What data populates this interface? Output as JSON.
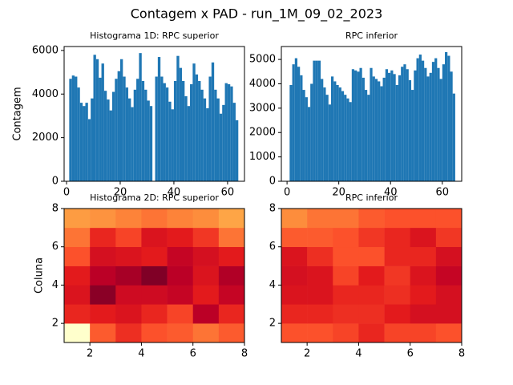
{
  "title": "Contagem x PAD - run_1M_09_02_2023",
  "chart_data": [
    {
      "type": "histogram",
      "title": "Histograma 1D: RPC superior",
      "ylabel": "Contagem",
      "color": "#1f77b4",
      "bins": [
        1,
        2,
        3,
        4,
        5,
        6,
        7,
        8,
        9,
        10,
        11,
        12,
        13,
        14,
        15,
        16,
        17,
        18,
        19,
        20,
        21,
        22,
        23,
        24,
        25,
        26,
        27,
        28,
        29,
        30,
        31,
        32,
        33,
        34,
        35,
        36,
        37,
        38,
        39,
        40,
        41,
        42,
        43,
        44,
        45,
        46,
        47,
        48,
        49,
        50,
        51,
        52,
        53,
        54,
        55,
        56,
        57,
        58,
        59,
        60,
        61,
        62,
        63,
        64
      ],
      "values": [
        4700,
        4850,
        4800,
        4300,
        3600,
        3450,
        3600,
        2850,
        3800,
        5800,
        5600,
        4750,
        5400,
        4150,
        3750,
        3250,
        4100,
        4700,
        5050,
        5600,
        4800,
        4300,
        3800,
        3400,
        4200,
        4700,
        5880,
        4600,
        4200,
        3700,
        3450,
        0,
        4800,
        5700,
        4800,
        4500,
        4300,
        3650,
        3300,
        4600,
        5750,
        5200,
        4600,
        3900,
        3450,
        4450,
        5400,
        4900,
        4600,
        4200,
        3800,
        3350,
        4800,
        5450,
        4200,
        3800,
        3100,
        3500,
        4500,
        4450,
        4350,
        3600,
        2800
      ],
      "xlim": [
        -0.9,
        66.3
      ],
      "ylim": [
        0,
        6180
      ],
      "xticks": [
        0,
        20,
        40,
        60
      ],
      "yticks": [
        0,
        2000,
        4000,
        6000
      ]
    },
    {
      "type": "histogram",
      "title": "RPC inferior",
      "color": "#1f77b4",
      "bins": [
        1,
        2,
        3,
        4,
        5,
        6,
        7,
        8,
        9,
        10,
        11,
        12,
        13,
        14,
        15,
        16,
        17,
        18,
        19,
        20,
        21,
        22,
        23,
        24,
        25,
        26,
        27,
        28,
        29,
        30,
        31,
        32,
        33,
        34,
        35,
        36,
        37,
        38,
        39,
        40,
        41,
        42,
        43,
        44,
        45,
        46,
        47,
        48,
        49,
        50,
        51,
        52,
        53,
        54,
        55,
        56,
        57,
        58,
        59,
        60,
        61,
        62,
        63,
        64,
        65
      ],
      "values": [
        3950,
        4800,
        5050,
        4700,
        4350,
        3750,
        3450,
        3050,
        4000,
        4950,
        4950,
        4950,
        4200,
        3850,
        3550,
        3150,
        4300,
        4100,
        3950,
        3850,
        3700,
        3550,
        3400,
        3250,
        4600,
        4550,
        4500,
        4650,
        4250,
        3750,
        3550,
        4650,
        4300,
        4200,
        4100,
        3900,
        4250,
        4600,
        4450,
        4550,
        4400,
        3950,
        4350,
        4700,
        4800,
        4600,
        4150,
        3750,
        4550,
        5050,
        5200,
        4950,
        4650,
        4300,
        4450,
        4900,
        5050,
        4650,
        4200,
        4800,
        5300,
        5150,
        4500,
        3600
      ],
      "xlim": [
        -2.2,
        67.5
      ],
      "ylim": [
        0,
        5530
      ],
      "xticks": [
        0,
        20,
        40,
        60
      ],
      "yticks": [
        0,
        1000,
        2000,
        3000,
        4000,
        5000
      ]
    },
    {
      "type": "heatmap",
      "title": "Histograma 2D: RPC superior",
      "ylabel": "Coluna",
      "xedges": [
        1,
        2,
        3,
        4,
        5,
        6,
        7,
        8
      ],
      "yedges": [
        1,
        2,
        3,
        4,
        5,
        6,
        7,
        8
      ],
      "values": [
        [
          0,
          60,
          70,
          62,
          60,
          55,
          60
        ],
        [
          72,
          75,
          78,
          72,
          65,
          88,
          72
        ],
        [
          78,
          98,
          82,
          82,
          85,
          75,
          85
        ],
        [
          75,
          88,
          92,
          100,
          88,
          78,
          90
        ],
        [
          62,
          80,
          78,
          75,
          85,
          80,
          75
        ],
        [
          55,
          72,
          65,
          78,
          75,
          68,
          55
        ],
        [
          45,
          48,
          52,
          55,
          52,
          50,
          42
        ]
      ],
      "clim": [
        0,
        100
      ],
      "colormap": [
        "#ffffcc",
        "#ffeda0",
        "#fed976",
        "#feb24c",
        "#fd8d3c",
        "#fc4e2a",
        "#e31a1c",
        "#bd0026",
        "#800026"
      ],
      "xlim": [
        1,
        8
      ],
      "ylim": [
        1,
        8
      ],
      "xticks": [
        2,
        4,
        6,
        8
      ],
      "yticks": [
        2,
        4,
        6,
        8
      ]
    },
    {
      "type": "heatmap",
      "title": "RPC inferior",
      "xedges": [
        1,
        2,
        3,
        4,
        5,
        6,
        7,
        8
      ],
      "yedges": [
        1,
        2,
        3,
        4,
        5,
        6,
        7,
        8
      ],
      "values": [
        [
          62,
          62,
          65,
          72,
          65,
          65,
          62
        ],
        [
          72,
          72,
          70,
          70,
          75,
          80,
          80
        ],
        [
          78,
          78,
          72,
          72,
          70,
          75,
          80
        ],
        [
          80,
          78,
          65,
          75,
          68,
          78,
          85
        ],
        [
          78,
          70,
          62,
          62,
          72,
          72,
          80
        ],
        [
          60,
          60,
          62,
          68,
          72,
          78,
          68
        ],
        [
          50,
          55,
          55,
          60,
          62,
          62,
          62
        ]
      ],
      "clim": [
        0,
        100
      ],
      "colormap": [
        "#ffffcc",
        "#ffeda0",
        "#fed976",
        "#feb24c",
        "#fd8d3c",
        "#fc4e2a",
        "#e31a1c",
        "#bd0026",
        "#800026"
      ],
      "xlim": [
        1,
        8
      ],
      "ylim": [
        1,
        8
      ],
      "xticks": [
        2,
        4,
        6,
        8
      ],
      "yticks": [
        2,
        4,
        6,
        8
      ]
    }
  ]
}
